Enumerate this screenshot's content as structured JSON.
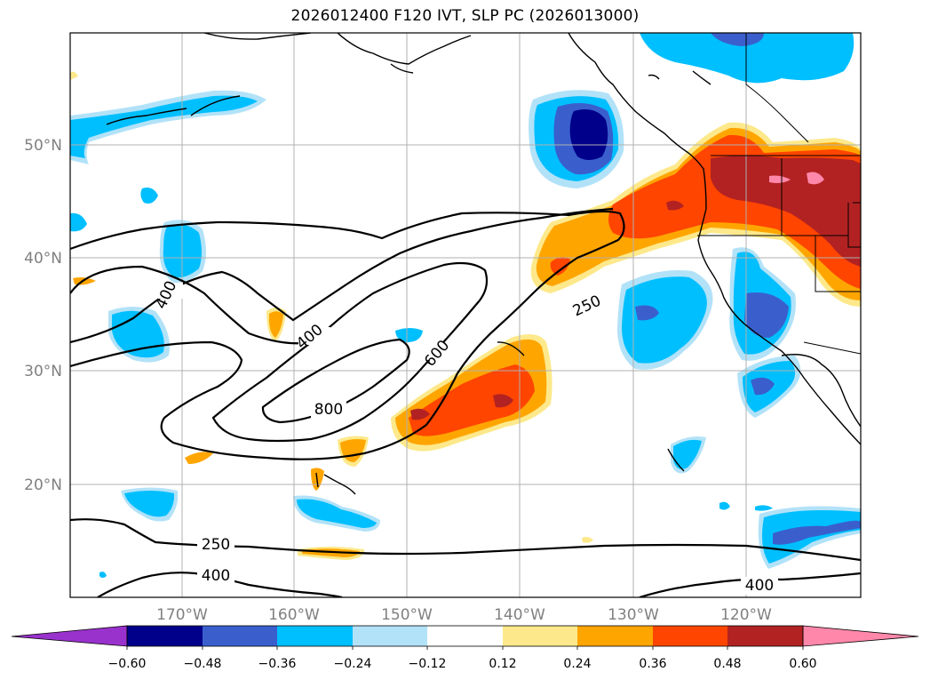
{
  "title": "2026012400 F120 IVT, SLP PC (2026013000)",
  "map": {
    "lat_labels": [
      "50°N",
      "40°N",
      "30°N",
      "20°N"
    ],
    "lon_labels": [
      "170°W",
      "160°W",
      "150°W",
      "140°W",
      "130°W",
      "120°W"
    ],
    "slp_contour_labels": [
      "400",
      "400",
      "600",
      "800",
      "250",
      "250",
      "400",
      "400"
    ]
  },
  "colorbar": {
    "tick_labels": [
      "−0.60",
      "−0.48",
      "−0.36",
      "−0.24",
      "−0.12",
      "0.12",
      "0.24",
      "0.36",
      "0.48",
      "0.60"
    ],
    "colors": [
      "#9932cc",
      "#00008b",
      "#3a5fcd",
      "#00bfff",
      "#b2e2f8",
      "#ffffff",
      "#fde98b",
      "#ffa500",
      "#ff4500",
      "#b22222",
      "#ff88aa"
    ]
  }
}
